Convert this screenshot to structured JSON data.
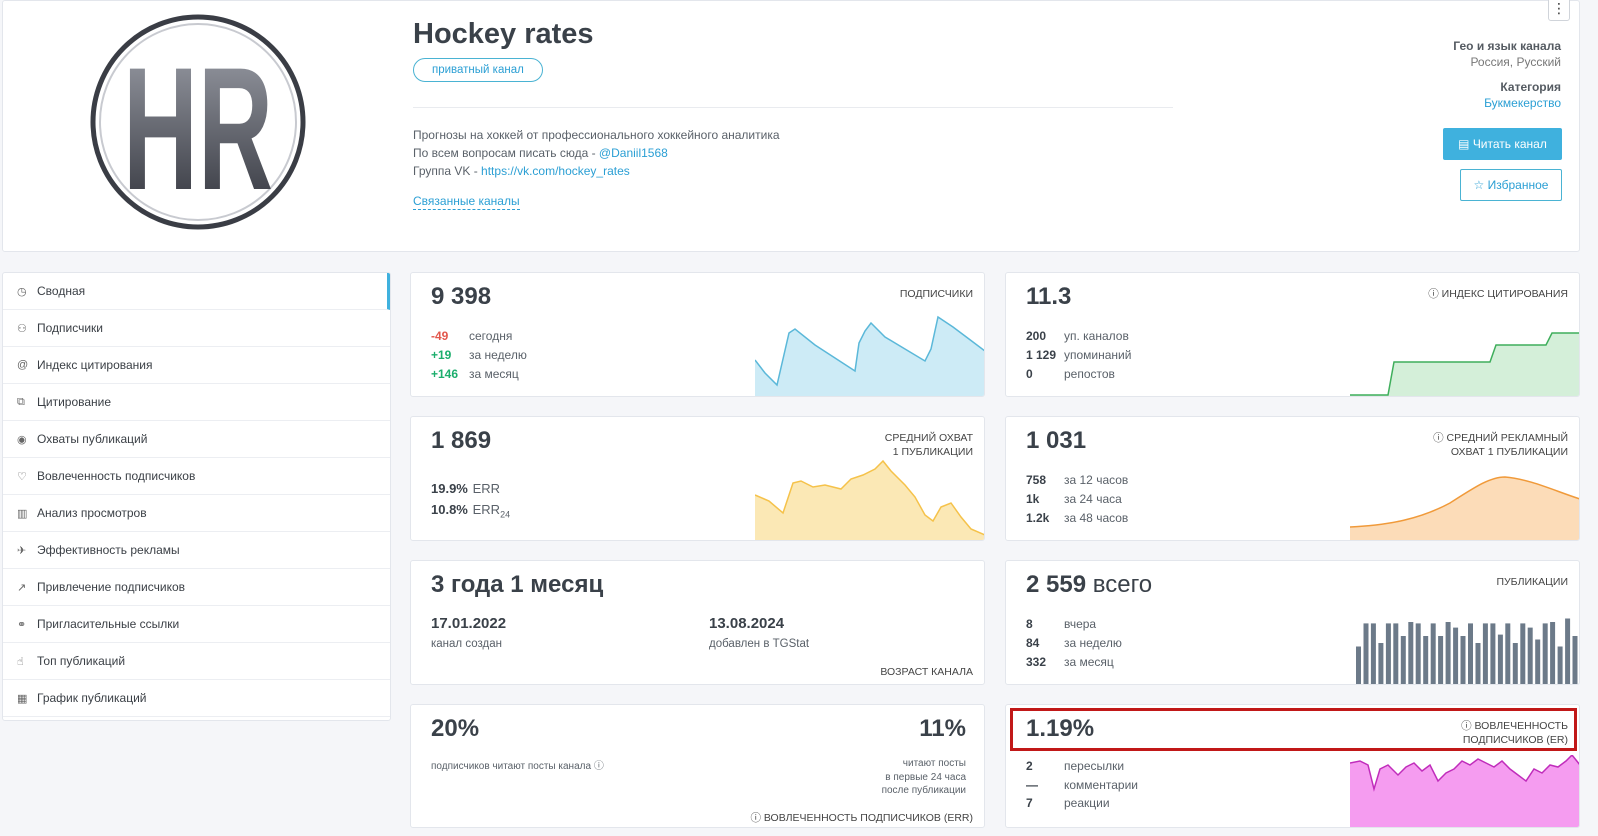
{
  "channel": {
    "title": "Hockey rates",
    "badge": "приватный канал",
    "logo_text": "HR",
    "description": {
      "line1": "Прогнозы на хоккей от профессионального хоккейного аналитика",
      "line2_prefix": "По всем вопросам писать сюда - ",
      "line2_link": "@Daniil1568",
      "line3_prefix": "Группа VK - ",
      "line3_link": "https://vk.com/hockey_rates"
    },
    "related": "Связанные каналы",
    "menu_icon": "⋮",
    "geo_label": "Гео и язык канала",
    "geo_value": "Россия, Русский",
    "category_label": "Категория",
    "category_value": "Букмекерство",
    "read_button": "Читать канал",
    "fav_button": "Избранное"
  },
  "sidebar": {
    "items": [
      {
        "label": "Сводная",
        "icon": "◷"
      },
      {
        "label": "Подписчики",
        "icon": "⚇"
      },
      {
        "label": "Индекс цитирования",
        "icon": "@"
      },
      {
        "label": "Цитирование",
        "icon": "⧉"
      },
      {
        "label": "Охваты публикаций",
        "icon": "◉"
      },
      {
        "label": "Вовлеченность подписчиков",
        "icon": "♡"
      },
      {
        "label": "Анализ просмотров",
        "icon": "▥"
      },
      {
        "label": "Эффективность рекламы",
        "icon": "✈"
      },
      {
        "label": "Привлечение подписчиков",
        "icon": "↗"
      },
      {
        "label": "Пригласительные ссылки",
        "icon": "⚭"
      },
      {
        "label": "Топ публикаций",
        "icon": "☝"
      },
      {
        "label": "График публикаций",
        "icon": "▦"
      }
    ]
  },
  "subscribers": {
    "value": "9 398",
    "label": "ПОДПИСЧИКИ",
    "rows": [
      {
        "n": "-49",
        "t": "сегодня"
      },
      {
        "n": "+19",
        "t": "за неделю"
      },
      {
        "n": "+146",
        "t": "за месяц"
      }
    ],
    "color": "#5bb8d9"
  },
  "citation": {
    "value": "11.3",
    "label": "ⓘ ИНДЕКС ЦИТИРОВАНИЯ",
    "rows": [
      {
        "n": "200",
        "t": "уп. каналов"
      },
      {
        "n": "1 129",
        "t": "упоминаний"
      },
      {
        "n": "0",
        "t": "репостов"
      }
    ],
    "color": "#3fae5c"
  },
  "reach": {
    "value": "1 869",
    "label1": "СРЕДНИЙ ОХВАТ",
    "label2": "1 ПУБЛИКАЦИИ",
    "err_value": "19.9%",
    "err_label": "ERR",
    "err24_value": "10.8%",
    "err24_label": "ERR",
    "err24_sub": "24",
    "color": "#f5c24a"
  },
  "ad_reach": {
    "value": "1 031",
    "label1": "ⓘ СРЕДНИЙ РЕКЛАМНЫЙ",
    "label2": "ОХВАТ 1 ПУБЛИКАЦИИ",
    "rows": [
      {
        "n": "758",
        "t": "за 12 часов"
      },
      {
        "n": "1k",
        "t": "за 24 часа"
      },
      {
        "n": "1.2k",
        "t": "за 48 часов"
      }
    ],
    "color": "#f09a3a"
  },
  "age": {
    "value": "3 года 1 месяц",
    "created_date": "17.01.2022",
    "created_label": "канал создан",
    "added_date": "13.08.2024",
    "added_label": "добавлен в TGStat",
    "label": "ВОЗРАСТ КАНАЛА"
  },
  "posts": {
    "value": "2 559",
    "value_suffix": "всего",
    "label": "ПУБЛИКАЦИИ",
    "rows": [
      {
        "n": "8",
        "t": "вчера"
      },
      {
        "n": "84",
        "t": "за неделю"
      },
      {
        "n": "332",
        "t": "за месяц"
      }
    ],
    "bars": [
      0.55,
      0.88,
      0.88,
      0.6,
      0.88,
      0.88,
      0.7,
      0.9,
      0.88,
      0.7,
      0.88,
      0.7,
      0.9,
      0.82,
      0.7,
      0.88,
      0.6,
      0.88,
      0.88,
      0.72,
      0.88,
      0.6,
      0.88,
      0.82,
      0.65,
      0.88,
      0.9,
      0.55,
      0.95,
      0.7
    ],
    "color": "#6c7a89"
  },
  "err": {
    "value_left": "20%",
    "left_text": "подписчиков читают посты канала ⓘ",
    "value_right": "11%",
    "right_line1": "читают посты",
    "right_line2": "в первые 24 часа",
    "right_line3": "после публикации",
    "label": "ⓘ ВОВЛЕЧЕННОСТЬ ПОДПИСЧИКОВ (ERR)"
  },
  "er": {
    "value": "1.19%",
    "label1": "ⓘ ВОВЛЕЧЕННОСТЬ",
    "label2": "ПОДПИСЧИКОВ (ER)",
    "rows": [
      {
        "n": "2",
        "t": "пересылки"
      },
      {
        "n": "—",
        "t": "комментарии"
      },
      {
        "n": "7",
        "t": "реакции"
      }
    ],
    "color": "#e74ce0"
  }
}
